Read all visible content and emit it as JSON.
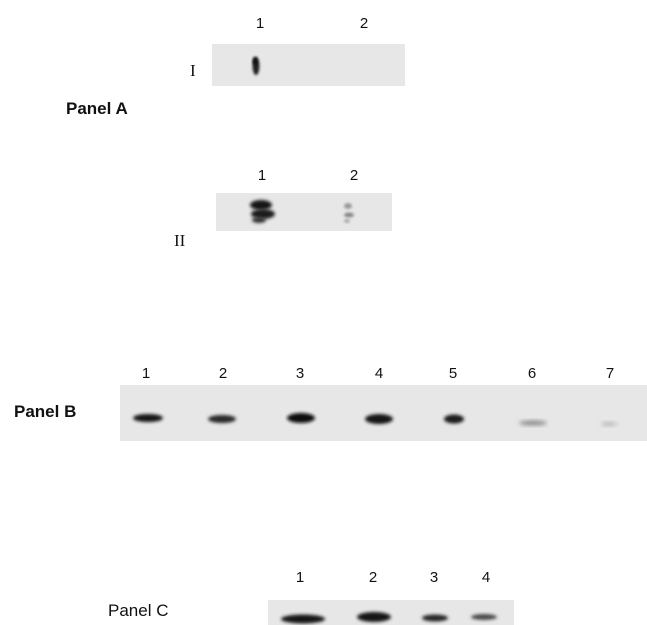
{
  "panel_a": {
    "label": "Panel A",
    "blot_i": {
      "roman": "I",
      "lanes": [
        "1",
        "2"
      ]
    },
    "blot_ii": {
      "roman": "II",
      "lanes": [
        "1",
        "2"
      ]
    }
  },
  "panel_b": {
    "label": "Panel B",
    "lanes": [
      "1",
      "2",
      "3",
      "4",
      "5",
      "6",
      "7"
    ]
  },
  "panel_c": {
    "label": "Panel C",
    "lanes": [
      "1",
      "2",
      "3",
      "4"
    ]
  },
  "colors": {
    "membrane": "#e7e7e7",
    "band_dark": "#151515",
    "band_mid": "#3a3a3a",
    "band_faint": "#9a9a9a"
  }
}
